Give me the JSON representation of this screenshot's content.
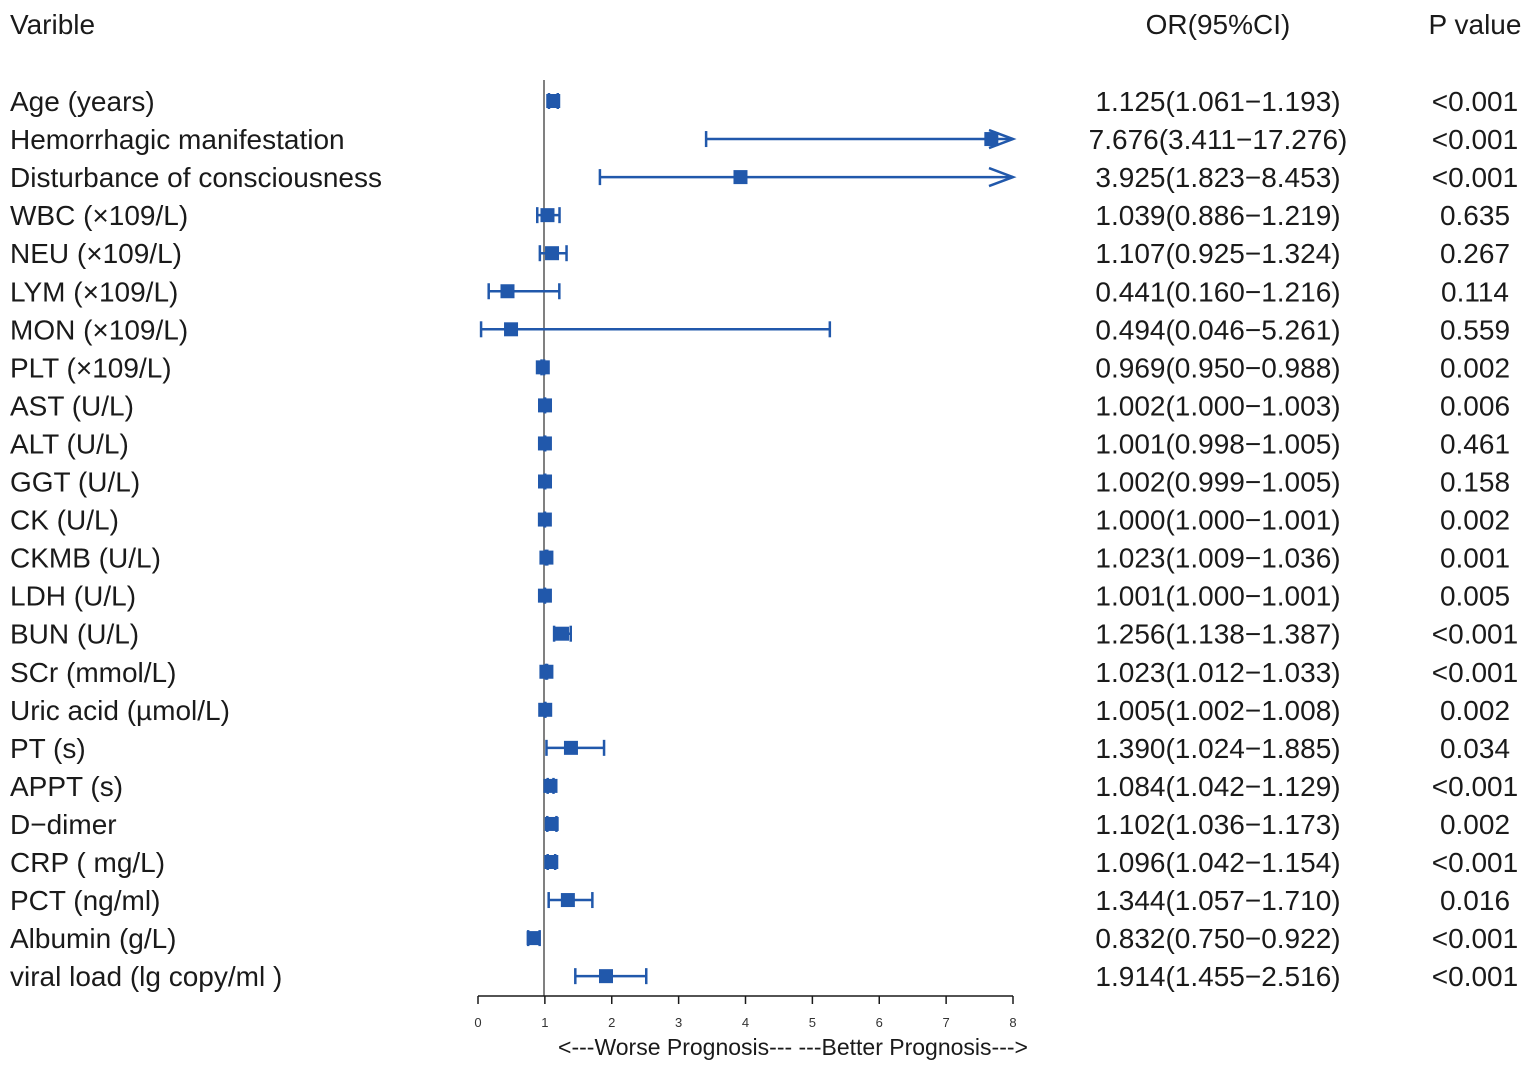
{
  "colors": {
    "marker": "#2158ab",
    "reference_line": "#808080",
    "text": "#1a1a1a"
  },
  "chart_data": {
    "type": "forest",
    "headers": {
      "variable": "Varible",
      "or_ci": "OR(95%CI)",
      "p_value": "P value"
    },
    "xlim": [
      0,
      8
    ],
    "reference_value": 1,
    "ticks": [
      "0",
      "1",
      "2",
      "3",
      "4",
      "5",
      "6",
      "7",
      "8"
    ],
    "direction_label": "<---Worse Prognosis---   ---Better Prognosis--->",
    "rows": [
      {
        "name": "Age (years)",
        "or": 1.125,
        "lo": 1.061,
        "hi": 1.193,
        "ci_text": "1.125(1.061−1.193)",
        "p": "<0.001"
      },
      {
        "name": "Hemorrhagic manifestation",
        "or": 7.676,
        "lo": 3.411,
        "hi": 17.276,
        "ci_text": "7.676(3.411−17.276)",
        "p": "<0.001"
      },
      {
        "name": "Disturbance of consciousness",
        "or": 3.925,
        "lo": 1.823,
        "hi": 8.453,
        "ci_text": "3.925(1.823−8.453)",
        "p": "<0.001"
      },
      {
        "name": "WBC (×109/L)",
        "or": 1.039,
        "lo": 0.886,
        "hi": 1.219,
        "ci_text": "1.039(0.886−1.219)",
        "p": "0.635"
      },
      {
        "name": "NEU (×109/L)",
        "or": 1.107,
        "lo": 0.925,
        "hi": 1.324,
        "ci_text": "1.107(0.925−1.324)",
        "p": "0.267"
      },
      {
        "name": "LYM (×109/L)",
        "or": 0.441,
        "lo": 0.16,
        "hi": 1.216,
        "ci_text": "0.441(0.160−1.216)",
        "p": "0.114"
      },
      {
        "name": "MON (×109/L)",
        "or": 0.494,
        "lo": 0.046,
        "hi": 5.261,
        "ci_text": "0.494(0.046−5.261)",
        "p": "0.559"
      },
      {
        "name": "PLT (×109/L)",
        "or": 0.969,
        "lo": 0.95,
        "hi": 0.988,
        "ci_text": "0.969(0.950−0.988)",
        "p": "0.002"
      },
      {
        "name": "AST (U/L)",
        "or": 1.002,
        "lo": 1.0,
        "hi": 1.003,
        "ci_text": "1.002(1.000−1.003)",
        "p": "0.006"
      },
      {
        "name": "ALT (U/L)",
        "or": 1.001,
        "lo": 0.998,
        "hi": 1.005,
        "ci_text": "1.001(0.998−1.005)",
        "p": "0.461"
      },
      {
        "name": "GGT (U/L)",
        "or": 1.002,
        "lo": 0.999,
        "hi": 1.005,
        "ci_text": "1.002(0.999−1.005)",
        "p": "0.158"
      },
      {
        "name": "CK (U/L)",
        "or": 1.0,
        "lo": 1.0,
        "hi": 1.001,
        "ci_text": "1.000(1.000−1.001)",
        "p": "0.002"
      },
      {
        "name": "CKMB (U/L)",
        "or": 1.023,
        "lo": 1.009,
        "hi": 1.036,
        "ci_text": "1.023(1.009−1.036)",
        "p": "0.001"
      },
      {
        "name": "LDH (U/L)",
        "or": 1.001,
        "lo": 1.0,
        "hi": 1.001,
        "ci_text": "1.001(1.000−1.001)",
        "p": "0.005"
      },
      {
        "name": "BUN (U/L)",
        "or": 1.256,
        "lo": 1.138,
        "hi": 1.387,
        "ci_text": "1.256(1.138−1.387)",
        "p": "<0.001"
      },
      {
        "name": "SCr (mmol/L)",
        "or": 1.023,
        "lo": 1.012,
        "hi": 1.033,
        "ci_text": "1.023(1.012−1.033)",
        "p": "<0.001"
      },
      {
        "name": "Uric acid (µmol/L)",
        "or": 1.005,
        "lo": 1.002,
        "hi": 1.008,
        "ci_text": "1.005(1.002−1.008)",
        "p": "0.002"
      },
      {
        "name": "PT (s)",
        "or": 1.39,
        "lo": 1.024,
        "hi": 1.885,
        "ci_text": "1.390(1.024−1.885)",
        "p": "0.034"
      },
      {
        "name": "APPT (s)",
        "or": 1.084,
        "lo": 1.042,
        "hi": 1.129,
        "ci_text": "1.084(1.042−1.129)",
        "p": "<0.001"
      },
      {
        "name": "D−dimer",
        "or": 1.102,
        "lo": 1.036,
        "hi": 1.173,
        "ci_text": "1.102(1.036−1.173)",
        "p": "0.002"
      },
      {
        "name": "CRP ( mg/L)",
        "or": 1.096,
        "lo": 1.042,
        "hi": 1.154,
        "ci_text": "1.096(1.042−1.154)",
        "p": "<0.001"
      },
      {
        "name": "PCT (ng/ml)",
        "or": 1.344,
        "lo": 1.057,
        "hi": 1.71,
        "ci_text": "1.344(1.057−1.710)",
        "p": "0.016"
      },
      {
        "name": "Albumin (g/L)",
        "or": 0.832,
        "lo": 0.75,
        "hi": 0.922,
        "ci_text": "0.832(0.750−0.922)",
        "p": "<0.001"
      },
      {
        "name": "viral load (lg copy/ml )",
        "or": 1.914,
        "lo": 1.455,
        "hi": 2.516,
        "ci_text": "1.914(1.455−2.516)",
        "p": "<0.001"
      }
    ]
  }
}
